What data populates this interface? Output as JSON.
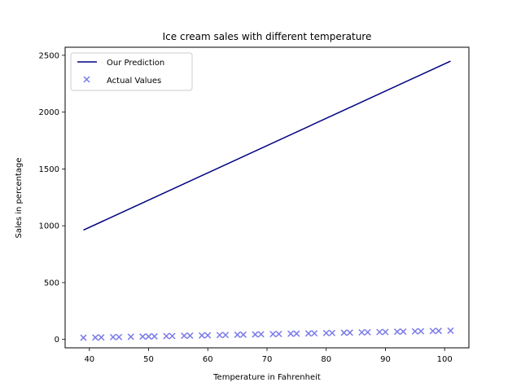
{
  "chart_data": {
    "type": "line",
    "title": "Ice cream sales with different temperature",
    "xlabel": "Temperature in Fahrenheit",
    "ylabel": "Sales in percentage",
    "xlim": [
      35.9,
      104.1
    ],
    "ylim": [
      -74,
      2571
    ],
    "xticks": [
      40,
      50,
      60,
      70,
      80,
      90,
      100
    ],
    "yticks": [
      0,
      500,
      1000,
      1500,
      2000,
      2500
    ],
    "grid": false,
    "legend_position": "upper left",
    "series": [
      {
        "name": "Our Prediction",
        "kind": "line",
        "color": "#000080",
        "x": [
          39,
          101
        ],
        "y": [
          962,
          2449
        ]
      },
      {
        "name": "Actual Values",
        "kind": "scatter",
        "marker": "x",
        "color": "#7b7bea",
        "x": [
          39,
          41,
          42,
          44,
          45,
          47,
          49,
          50,
          51,
          53,
          54,
          56,
          57,
          59,
          60,
          62,
          63,
          65,
          66,
          68,
          69,
          71,
          72,
          74,
          75,
          77,
          78,
          80,
          81,
          83,
          84,
          86,
          87,
          89,
          90,
          92,
          93,
          95,
          96,
          98,
          99,
          101
        ],
        "y": [
          15,
          17,
          18,
          20,
          21,
          23,
          25,
          26,
          27,
          29,
          30,
          32,
          33,
          35,
          36,
          38,
          39,
          41,
          42,
          44,
          45,
          47,
          48,
          50,
          51,
          53,
          54,
          56,
          57,
          59,
          60,
          62,
          63,
          65,
          66,
          68,
          69,
          71,
          72,
          74,
          75,
          77
        ]
      }
    ]
  }
}
